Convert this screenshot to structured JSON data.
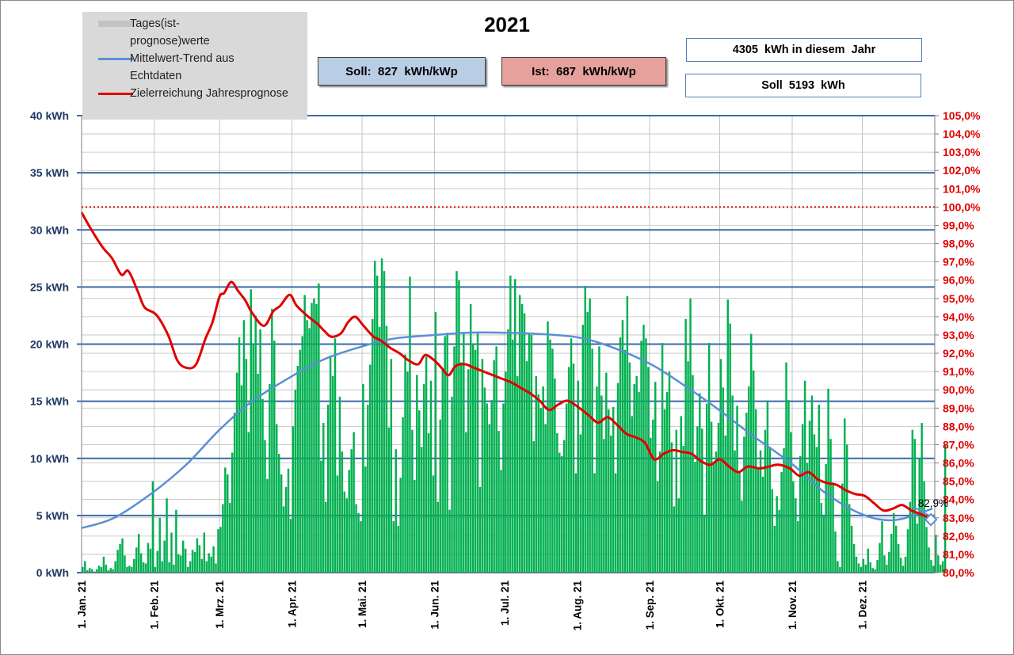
{
  "title": "2021",
  "info_boxes": {
    "soll_kwp": "Soll:  827  kWh/kWp",
    "ist_kwp": "Ist:  687  kWh/kWp",
    "year_total": "4305  kWh in diesem  Jahr",
    "soll_total": "Soll  5193  kWh"
  },
  "legend": {
    "daily": "Tages(ist-prognose)werte",
    "trend": "Mittelwert-Trend aus Echtdaten",
    "goal": "Zielerreichung Jahresprognose"
  },
  "end_label": "82,9%",
  "colors": {
    "bars": "#00b050",
    "trend": "#5b8fd6",
    "goal": "#e00000",
    "right_axis": "#e00000",
    "left_axis": "#1f3864",
    "major_grid": "#3b6aa5",
    "soll_box": "#b9cde5",
    "ist_box": "#e6a19d",
    "legend_bg": "#d9d9d9"
  },
  "chart_data": {
    "type": "bar",
    "x_range": [
      "2021-01-01",
      "2021-12-31"
    ],
    "x_tick_labels": [
      "1. Jan. 21",
      "1. Feb. 21",
      "1. Mrz. 21",
      "1. Apr. 21",
      "1. Mai. 21",
      "1. Jun. 21",
      "1. Jul. 21",
      "1. Aug. 21",
      "1. Sep. 21",
      "1. Okt. 21",
      "1. Nov. 21",
      "1. Dez. 21"
    ],
    "y_left": {
      "min": 0,
      "max": 40,
      "ticks": [
        "0 kWh",
        "5 kWh",
        "10 kWh",
        "15 kWh",
        "20 kWh",
        "25 kWh",
        "30 kWh",
        "35 kWh",
        "40 kWh"
      ]
    },
    "y_right": {
      "min": 80,
      "max": 105,
      "ticks": [
        "80,0%",
        "81,0%",
        "82,0%",
        "83,0%",
        "84,0%",
        "85,0%",
        "86,0%",
        "87,0%",
        "88,0%",
        "89,0%",
        "90,0%",
        "91,0%",
        "92,0%",
        "93,0%",
        "94,0%",
        "95,0%",
        "96,0%",
        "97,0%",
        "98,0%",
        "99,0%",
        "100,0%",
        "101,0%",
        "102,0%",
        "103,0%",
        "104,0%",
        "105,0%"
      ]
    },
    "reference_line": {
      "axis": "right",
      "value": 100
    },
    "series": [
      {
        "name": "Tages(ist-prognose)werte",
        "type": "bar",
        "axis": "left",
        "x_start": "2021-01-01",
        "values": [
          0.5,
          1.0,
          0.2,
          0.4,
          0.3,
          0.1,
          0.3,
          0.6,
          0.5,
          1.4,
          0.7,
          0.2,
          0.4,
          0.3,
          1.0,
          2.0,
          2.5,
          3.0,
          1.5,
          0.5,
          0.6,
          0.5,
          1.2,
          2.2,
          3.4,
          1.7,
          0.9,
          0.8,
          2.6,
          2.1,
          8.0,
          0.5,
          1.9,
          4.8,
          1.0,
          2.8,
          6.5,
          0.9,
          3.5,
          0.7,
          5.5,
          1.6,
          1.5,
          2.8,
          2.1,
          0.5,
          1.0,
          2.0,
          1.8,
          3.0,
          2.4,
          1.2,
          3.5,
          1.0,
          1.7,
          1.4,
          2.3,
          0.8,
          3.8,
          4.0,
          6.0,
          9.2,
          8.6,
          6.1,
          10.5,
          14.0,
          17.5,
          20.6,
          16.4,
          22.1,
          18.7,
          12.3,
          24.8,
          20.0,
          22.5,
          17.4,
          21.3,
          15.2,
          11.6,
          8.2,
          16.5,
          23.1,
          20.3,
          13.0,
          10.4,
          8.6,
          5.8,
          7.5,
          9.1,
          4.7,
          12.8,
          16.0,
          18.1,
          19.5,
          20.7,
          24.3,
          22.1,
          21.4,
          23.6,
          24.0,
          23.5,
          25.3,
          9.8,
          13.1,
          6.2,
          14.7,
          19.0,
          17.2,
          20.5,
          8.5,
          15.4,
          10.6,
          7.1,
          6.5,
          9.0,
          10.8,
          12.3,
          6.0,
          5.2,
          4.5,
          16.5,
          9.3,
          14.7,
          18.2,
          22.2,
          27.3,
          26.0,
          21.5,
          27.5,
          26.4,
          21.6,
          12.7,
          18.7,
          4.5,
          10.8,
          4.1,
          8.3,
          13.6,
          19.1,
          17.6,
          25.9,
          12.5,
          8.1,
          17.3,
          14.2,
          11.0,
          16.5,
          18.9,
          12.2,
          16.8,
          8.5,
          22.8,
          6.2,
          13.4,
          17.8,
          20.7,
          21.0,
          5.5,
          15.4,
          19.8,
          26.4,
          25.6,
          18.4,
          20.9,
          12.3,
          17.8,
          23.5,
          20.0,
          19.5,
          21.1,
          7.5,
          18.7,
          16.2,
          14.8,
          13.0,
          15.1,
          18.6,
          19.8,
          12.4,
          9.0,
          14.8,
          17.6,
          21.3,
          26.0,
          20.4,
          25.7,
          17.2,
          24.3,
          23.5,
          22.7,
          18.5,
          21.0,
          20.8,
          11.5,
          17.2,
          15.6,
          14.4,
          16.3,
          13.0,
          22.0,
          20.4,
          19.6,
          17.0,
          12.2,
          10.5,
          10.2,
          11.6,
          14.8,
          18.0,
          20.5,
          18.3,
          8.7,
          16.8,
          12.1,
          21.7,
          25.1,
          22.8,
          24.0,
          19.6,
          8.7,
          16.3,
          19.8,
          15.5,
          11.7,
          17.5,
          14.3,
          12.0,
          14.5,
          8.7,
          16.6,
          20.6,
          22.1,
          19.5,
          24.2,
          18.4,
          13.7,
          16.5,
          17.2,
          15.8,
          20.3,
          21.7,
          20.5,
          18.0,
          11.8,
          13.4,
          16.7,
          8.0,
          10.6,
          20.1,
          14.3,
          15.8,
          17.6,
          11.4,
          5.8,
          12.5,
          6.5,
          13.7,
          11.1,
          22.2,
          18.5,
          24.0,
          17.3,
          9.7,
          12.8,
          15.7,
          12.6,
          5.0,
          14.8,
          20.1,
          13.2,
          9.7,
          10.6,
          13.1,
          18.7,
          16.2,
          12.0,
          23.9,
          21.8,
          15.5,
          10.7,
          14.6,
          8.8,
          6.3,
          11.9,
          14.0,
          16.3,
          20.9,
          17.7,
          14.3,
          9.2,
          10.7,
          8.4,
          12.5,
          15.0,
          11.0,
          7.3,
          4.1,
          6.7,
          5.5,
          8.8,
          10.9,
          18.4,
          15.1,
          12.3,
          8.0,
          6.5,
          4.5,
          10.2,
          13.0,
          16.8,
          9.6,
          13.3,
          15.5,
          12.1,
          11.0,
          14.7,
          6.1,
          5.0,
          9.5,
          16.1,
          11.7,
          7.9,
          3.6,
          1.0,
          0.5,
          7.8,
          13.5,
          11.2,
          6.0,
          4.1,
          2.5,
          1.4,
          0.8,
          0.5,
          1.2,
          0.7,
          2.1,
          0.9,
          0.4,
          0.3,
          1.1,
          2.6,
          4.5,
          1.5,
          0.7,
          1.8,
          3.4,
          5.2,
          4.1,
          2.5,
          1.3,
          0.6,
          1.4,
          3.8,
          6.2,
          12.5,
          11.7,
          4.3,
          10.0,
          13.1,
          8.0,
          4.0,
          2.2,
          1.1,
          0.6,
          3.3,
          1.5,
          0.7,
          1.0,
          11.2
        ]
      },
      {
        "name": "Mittelwert-Trend aus Echtdaten",
        "type": "line",
        "axis": "left",
        "x": [
          "2021-01-01",
          "2021-01-15",
          "2021-02-01",
          "2021-02-15",
          "2021-03-01",
          "2021-03-15",
          "2021-04-01",
          "2021-04-15",
          "2021-05-01",
          "2021-05-15",
          "2021-06-01",
          "2021-06-15",
          "2021-07-01",
          "2021-07-15",
          "2021-08-01",
          "2021-08-15",
          "2021-09-01",
          "2021-09-15",
          "2021-10-01",
          "2021-10-15",
          "2021-11-01",
          "2021-11-15",
          "2021-12-01",
          "2021-12-15",
          "2021-12-31"
        ],
        "values": [
          3.9,
          4.8,
          7.1,
          9.5,
          12.5,
          15.0,
          17.2,
          18.7,
          19.8,
          20.5,
          20.8,
          21.0,
          21.0,
          20.9,
          20.6,
          19.8,
          18.3,
          16.5,
          14.2,
          12.0,
          9.5,
          7.0,
          5.1,
          4.6,
          5.6
        ]
      },
      {
        "name": "Zielerreichung Jahresprognose",
        "type": "line",
        "axis": "right",
        "x": [
          "2021-01-01",
          "2021-01-05",
          "2021-01-10",
          "2021-01-14",
          "2021-01-18",
          "2021-01-21",
          "2021-01-25",
          "2021-01-28",
          "2021-02-02",
          "2021-02-07",
          "2021-02-11",
          "2021-02-15",
          "2021-02-19",
          "2021-02-23",
          "2021-02-26",
          "2021-03-01",
          "2021-03-03",
          "2021-03-06",
          "2021-03-09",
          "2021-03-12",
          "2021-03-15",
          "2021-03-20",
          "2021-03-24",
          "2021-03-27",
          "2021-03-31",
          "2021-04-03",
          "2021-04-08",
          "2021-04-12",
          "2021-04-15",
          "2021-04-18",
          "2021-04-22",
          "2021-04-25",
          "2021-04-28",
          "2021-05-01",
          "2021-05-03",
          "2021-05-06",
          "2021-05-09",
          "2021-05-13",
          "2021-05-17",
          "2021-05-21",
          "2021-05-25",
          "2021-05-28",
          "2021-06-01",
          "2021-06-04",
          "2021-06-07",
          "2021-06-10",
          "2021-06-14",
          "2021-06-18",
          "2021-06-22",
          "2021-06-26",
          "2021-06-30",
          "2021-07-04",
          "2021-07-08",
          "2021-07-12",
          "2021-07-16",
          "2021-07-20",
          "2021-07-24",
          "2021-07-28",
          "2021-08-02",
          "2021-08-06",
          "2021-08-10",
          "2021-08-14",
          "2021-08-18",
          "2021-08-22",
          "2021-08-26",
          "2021-08-30",
          "2021-09-03",
          "2021-09-07",
          "2021-09-11",
          "2021-09-15",
          "2021-09-19",
          "2021-09-23",
          "2021-09-27",
          "2021-10-01",
          "2021-10-05",
          "2021-10-09",
          "2021-10-13",
          "2021-10-18",
          "2021-10-22",
          "2021-10-26",
          "2021-10-31",
          "2021-11-04",
          "2021-11-08",
          "2021-11-12",
          "2021-11-16",
          "2021-11-20",
          "2021-11-24",
          "2021-11-28",
          "2021-12-02",
          "2021-12-06",
          "2021-12-10",
          "2021-12-14",
          "2021-12-18",
          "2021-12-22",
          "2021-12-26",
          "2021-12-31"
        ],
        "values": [
          99.7,
          98.8,
          97.8,
          97.2,
          96.3,
          96.5,
          95.4,
          94.5,
          94.1,
          93.0,
          91.6,
          91.2,
          91.4,
          92.8,
          93.7,
          95.1,
          95.3,
          95.9,
          95.4,
          94.9,
          94.2,
          93.5,
          94.3,
          94.6,
          95.2,
          94.6,
          94.0,
          93.6,
          93.2,
          92.9,
          93.1,
          93.7,
          94.0,
          93.6,
          93.3,
          92.9,
          92.7,
          92.3,
          92.0,
          91.6,
          91.4,
          91.9,
          91.6,
          91.2,
          90.8,
          91.3,
          91.4,
          91.2,
          91.0,
          90.8,
          90.6,
          90.4,
          90.1,
          89.8,
          89.4,
          88.9,
          89.2,
          89.4,
          89.0,
          88.6,
          88.2,
          88.5,
          88.1,
          87.6,
          87.4,
          87.1,
          86.2,
          86.5,
          86.7,
          86.6,
          86.5,
          86.1,
          85.9,
          86.2,
          85.8,
          85.5,
          85.8,
          85.7,
          85.8,
          85.9,
          85.7,
          85.3,
          85.5,
          85.1,
          84.9,
          84.8,
          84.5,
          84.3,
          84.2,
          83.8,
          83.4,
          83.5,
          83.7,
          83.4,
          83.2,
          82.9
        ]
      }
    ],
    "end_marker": {
      "date": "2021-12-31",
      "value": 82.9,
      "label": "82,9%"
    }
  }
}
